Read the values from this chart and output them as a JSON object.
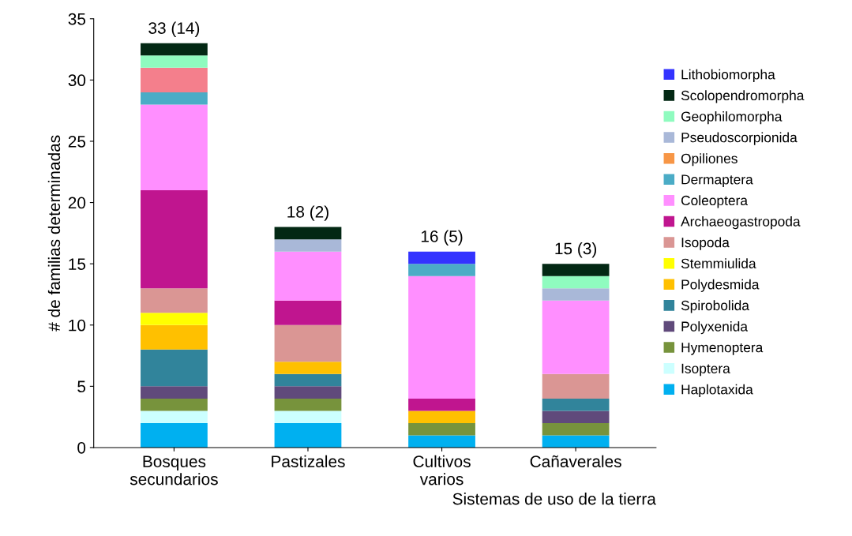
{
  "chart_data": {
    "type": "bar",
    "stacked": true,
    "xlabel": "Sistemas de uso de la tierra",
    "ylabel": "# de familias determinadas",
    "categories": [
      "Bosques\nsecundarios",
      "Pastizales",
      "Cultivos\nvarios",
      "Cañaverales"
    ],
    "series": [
      {
        "name": "Haplotaxida",
        "color": "#00b0f0",
        "values": [
          2,
          2,
          1,
          1
        ]
      },
      {
        "name": "Isoptera",
        "color": "#ccffff",
        "values": [
          1,
          1,
          0,
          0
        ]
      },
      {
        "name": "Hymenoptera",
        "color": "#77933c",
        "values": [
          1,
          1,
          1,
          1
        ]
      },
      {
        "name": "Polyxenida",
        "color": "#604a7b",
        "values": [
          1,
          1,
          0,
          1
        ]
      },
      {
        "name": "Spirobolida",
        "color": "#31849b",
        "values": [
          3,
          1,
          0,
          1
        ]
      },
      {
        "name": "Polydesmida",
        "color": "#ffc000",
        "values": [
          2,
          1,
          1,
          0
        ]
      },
      {
        "name": "Stemmiulida",
        "color": "#ffff00",
        "values": [
          1,
          0,
          0,
          0
        ]
      },
      {
        "name": "Isopoda",
        "color": "#da9694",
        "values": [
          2,
          3,
          0,
          2
        ]
      },
      {
        "name": "Archaeogastropoda",
        "color": "#c0158f",
        "values": [
          8,
          2,
          1,
          0
        ]
      },
      {
        "name": "Coleoptera",
        "color": "#ff8fff",
        "values": [
          7,
          4,
          10,
          6
        ]
      },
      {
        "name": "Dermaptera",
        "color": "#4bacc6",
        "values": [
          1,
          0,
          1,
          0
        ]
      },
      {
        "color": "#f47f8c",
        "values": [
          2,
          0,
          0,
          0
        ]
      },
      {
        "name": "Opiliones",
        "color": "#f79646",
        "values": [
          0,
          0,
          0,
          0
        ]
      },
      {
        "name": "Pseudoscorpionida",
        "color": "#a9b8d8",
        "values": [
          0,
          1,
          0,
          1
        ]
      },
      {
        "name": "Geophilomorpha",
        "color": "#8ffbbf",
        "values": [
          1,
          0,
          0,
          1
        ]
      },
      {
        "name": "Scolopendromorpha",
        "color": "#032814",
        "values": [
          1,
          1,
          0,
          1
        ]
      },
      {
        "name": "Lithobiomorpha",
        "color": "#3333ff",
        "values": [
          0,
          0,
          1,
          0
        ]
      }
    ],
    "totals": [
      "33 (14)",
      "18 (2)",
      "16 (5)",
      "15 (3)"
    ],
    "ylim": [
      0,
      35
    ],
    "yticks": [
      0,
      5,
      10,
      15,
      20,
      25,
      30,
      35
    ],
    "grid": false,
    "legend": "right"
  }
}
